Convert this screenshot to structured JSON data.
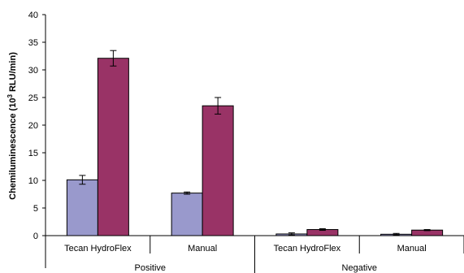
{
  "chart_data": {
    "type": "bar",
    "ylabel": {
      "prefix": "Chemiluminescence (10",
      "superscript": "3",
      "suffix": " RLU/min)"
    },
    "ylim": [
      0,
      40
    ],
    "yticks": [
      0,
      5,
      10,
      15,
      20,
      25,
      30,
      35,
      40
    ],
    "grid": false,
    "categories": [
      "Tecan HydroFlex",
      "Manual",
      "Tecan HydroFlex",
      "Manual"
    ],
    "groups": [
      {
        "label": "Positive",
        "categories": [
          0,
          1
        ]
      },
      {
        "label": "Negative",
        "categories": [
          2,
          3
        ]
      }
    ],
    "series": [
      {
        "color": "#9999cc",
        "values": [
          10.1,
          7.7,
          0.3,
          0.25
        ],
        "errors": [
          0.8,
          0.2,
          0.2,
          0.15
        ]
      },
      {
        "color": "#993366",
        "values": [
          32.1,
          23.5,
          1.1,
          1.0
        ],
        "errors": [
          1.4,
          1.5,
          0.15,
          0.1
        ]
      }
    ]
  }
}
